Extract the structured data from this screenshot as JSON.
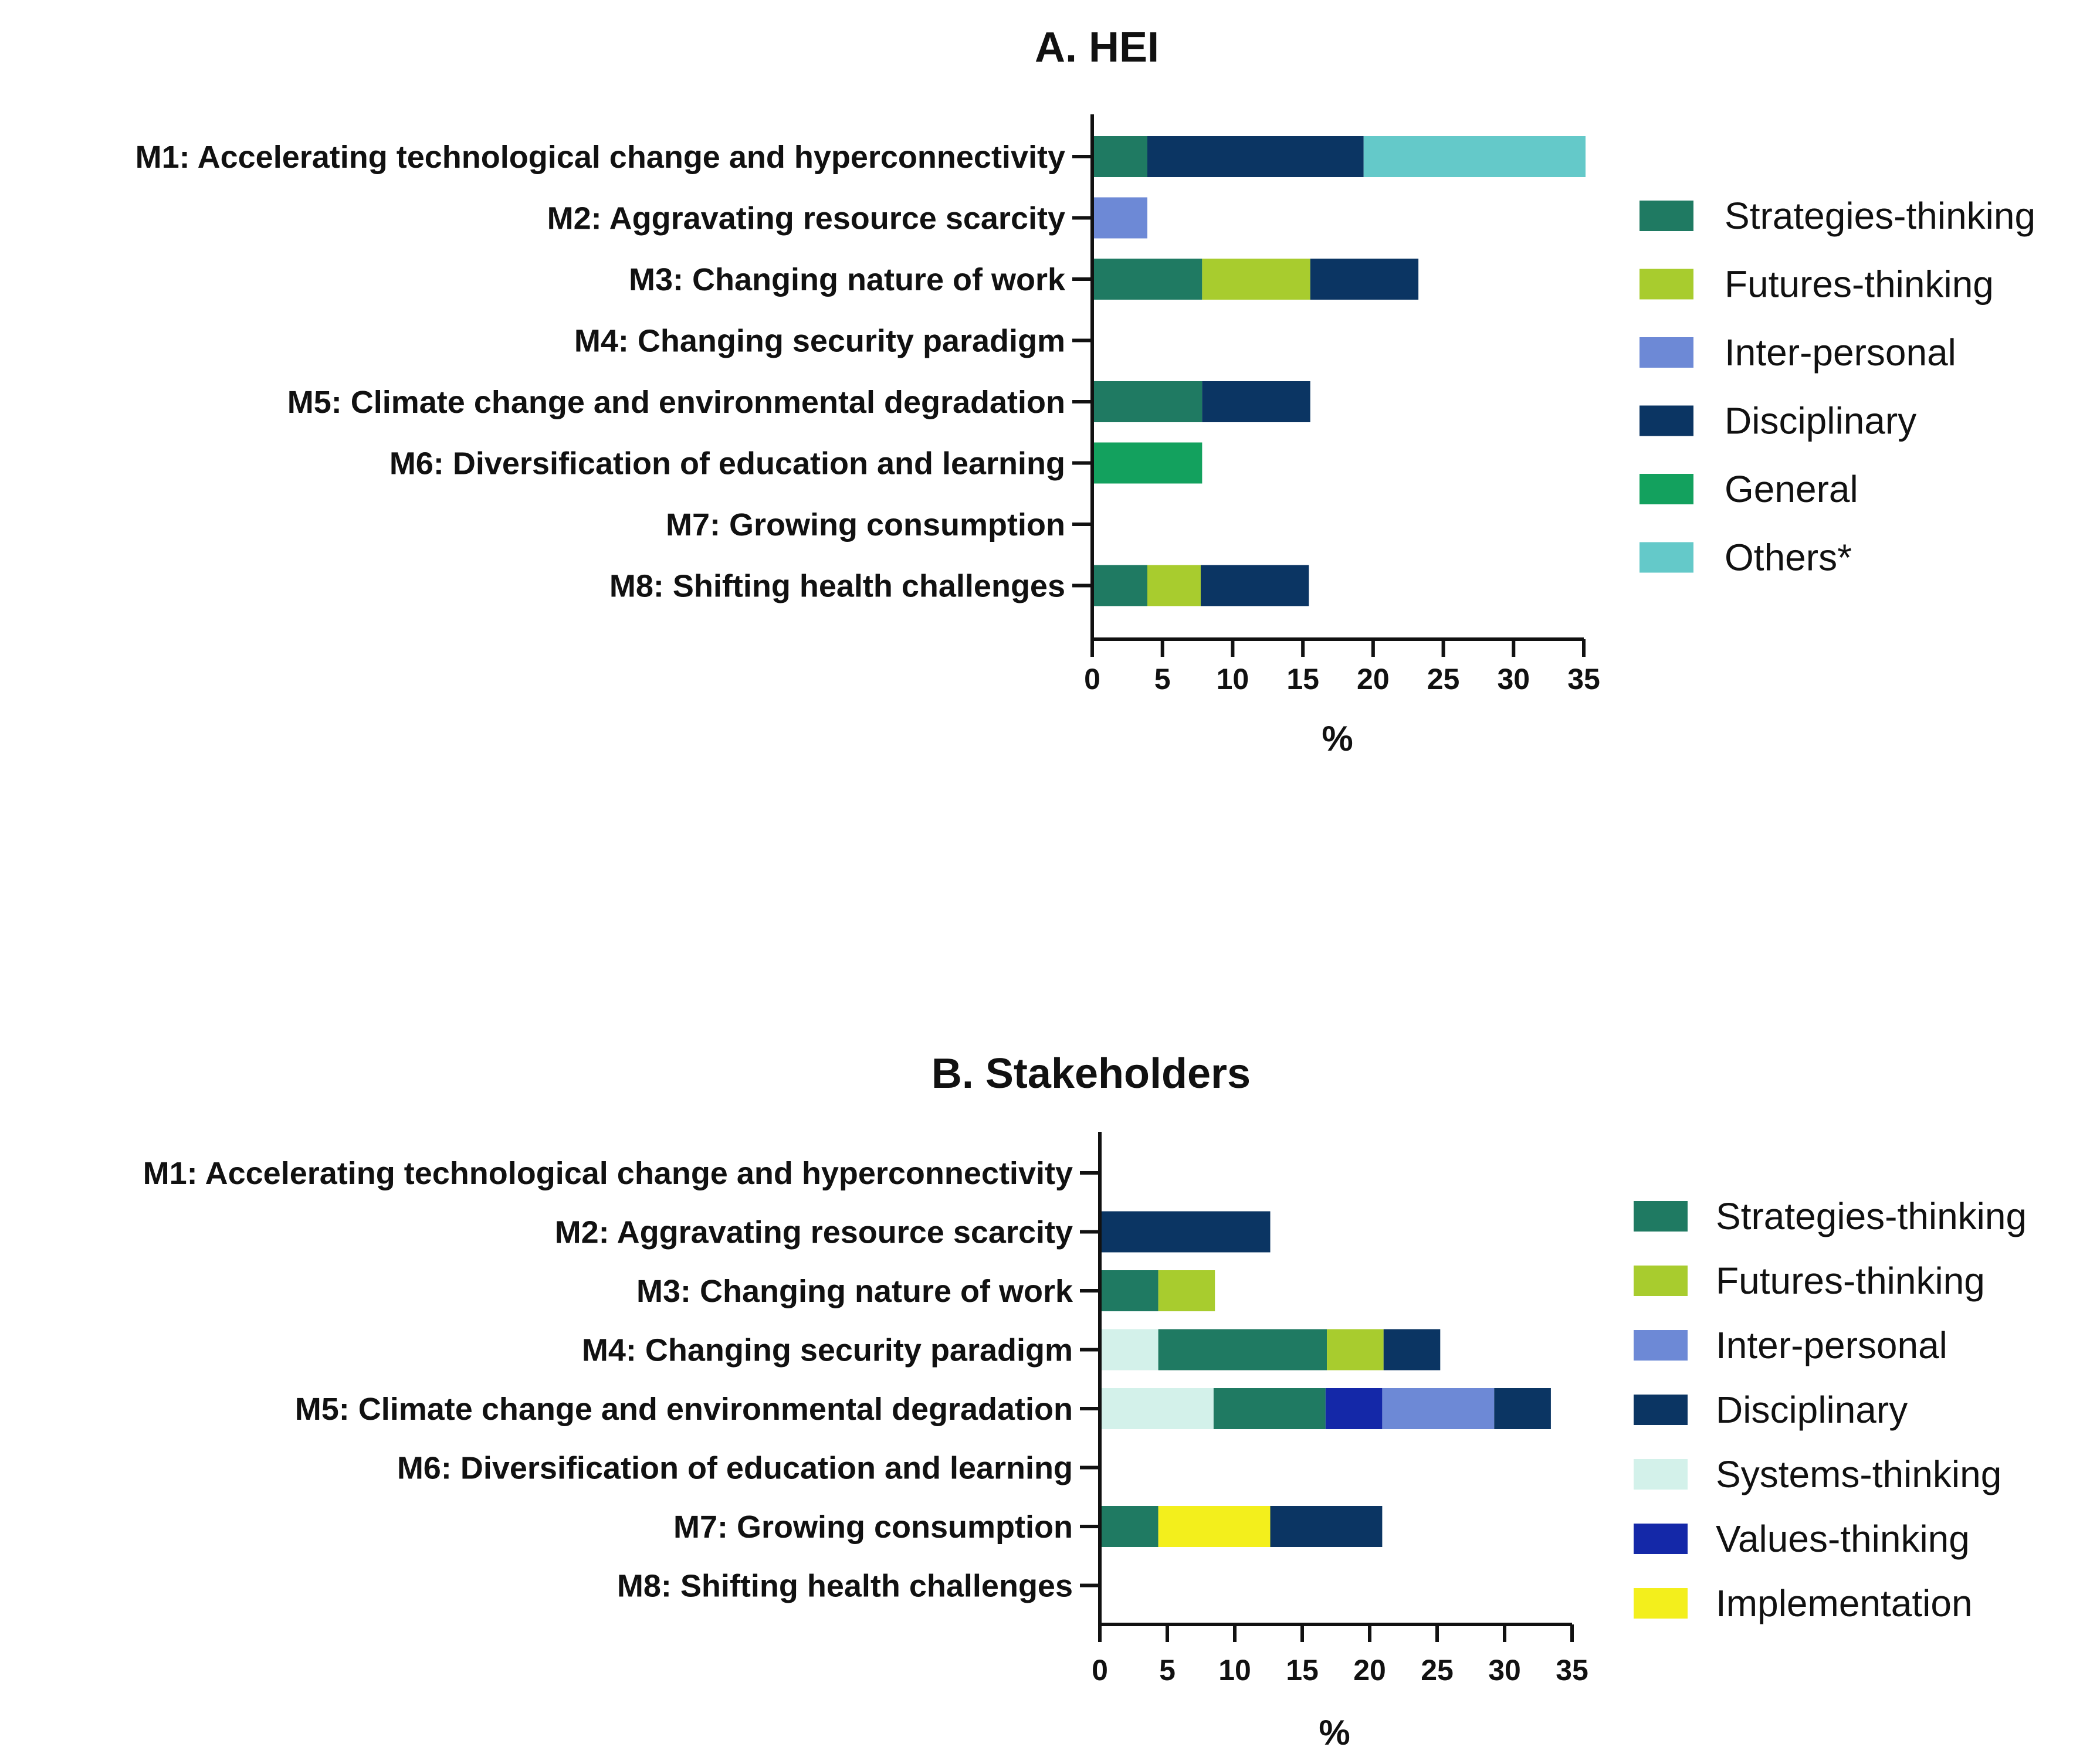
{
  "chart_data": [
    {
      "type": "bar",
      "orientation": "horizontal",
      "stacked": true,
      "title": "A. HEI",
      "xlabel": "%",
      "ylabel": "",
      "xlim": [
        0,
        35
      ],
      "xticks": [
        "0",
        "5",
        "10",
        "15",
        "20",
        "25",
        "30",
        "35"
      ],
      "categories": [
        "M1: Accelerating technological change and hyperconnectivity",
        "M2: Aggravating resource scarcity",
        "M3: Changing nature of work",
        "M4: Changing security paradigm",
        "M5: Climate change and environmental degradation",
        "M6: Diversification of education and learning",
        "M7: Growing consumption",
        "M8: Shifting health challenges"
      ],
      "series": [
        {
          "name": "Strategies-thinking",
          "color": "#1f7a62",
          "values": [
            3.8,
            0,
            7.7,
            0,
            7.7,
            0,
            0,
            3.8
          ]
        },
        {
          "name": "Futures-thinking",
          "color": "#a8cc2e",
          "values": [
            0,
            0,
            7.7,
            0,
            0,
            0,
            0,
            3.8
          ]
        },
        {
          "name": "Inter-personal",
          "color": "#6d89d6",
          "values": [
            0,
            3.8,
            0,
            0,
            0,
            0,
            0,
            0
          ]
        },
        {
          "name": "Disciplinary",
          "color": "#0b3563",
          "values": [
            15.4,
            0,
            7.7,
            0,
            7.7,
            0,
            0,
            7.7
          ]
        },
        {
          "name": "General",
          "color": "#13a15e",
          "values": [
            0,
            0,
            0,
            0,
            0,
            7.7,
            0,
            0
          ]
        },
        {
          "name": "Others*",
          "color": "#64c9c9",
          "values": [
            15.8,
            0,
            0,
            0,
            0,
            0,
            0,
            0
          ]
        }
      ],
      "legend_position": "right"
    },
    {
      "type": "bar",
      "orientation": "horizontal",
      "stacked": true,
      "title": "B. Stakeholders",
      "xlabel": "%",
      "ylabel": "",
      "xlim": [
        0,
        35
      ],
      "xticks": [
        "0",
        "5",
        "10",
        "15",
        "20",
        "25",
        "30",
        "35"
      ],
      "categories": [
        "M1: Accelerating technological change and hyperconnectivity",
        "M2: Aggravating resource scarcity",
        "M3: Changing nature of work",
        "M4: Changing security paradigm",
        "M5: Climate change and environmental degradation",
        "M6: Diversification of education and learning",
        "M7: Growing consumption",
        "M8: Shifting health challenges"
      ],
      "series": [
        {
          "name": "Systems-thinking",
          "color": "#d3f1ea",
          "values": [
            0,
            0,
            0,
            4.2,
            8.3,
            0,
            0,
            0
          ]
        },
        {
          "name": "Strategies-thinking",
          "color": "#1f7a62",
          "values": [
            0,
            0,
            4.2,
            12.5,
            8.3,
            0,
            4.2,
            0
          ]
        },
        {
          "name": "Futures-thinking",
          "color": "#a8cc2e",
          "values": [
            0,
            0,
            4.2,
            4.2,
            0,
            0,
            0,
            0
          ]
        },
        {
          "name": "Values-thinking",
          "color": "#1428a8",
          "values": [
            0,
            0,
            0,
            0,
            4.2,
            0,
            0,
            0
          ]
        },
        {
          "name": "Implementation",
          "color": "#f3ef1c",
          "values": [
            0,
            0,
            0,
            0,
            0,
            0,
            8.3,
            0
          ]
        },
        {
          "name": "Inter-personal",
          "color": "#6d89d6",
          "values": [
            0,
            0,
            0,
            0,
            8.3,
            0,
            0,
            0
          ]
        },
        {
          "name": "Disciplinary",
          "color": "#0b3563",
          "values": [
            0,
            12.5,
            0,
            4.2,
            4.2,
            0,
            8.3,
            0
          ]
        }
      ],
      "legend_order": [
        "Strategies-thinking",
        "Futures-thinking",
        "Inter-personal",
        "Disciplinary",
        "Systems-thinking",
        "Values-thinking",
        "Implementation"
      ],
      "legend_position": "right"
    }
  ]
}
